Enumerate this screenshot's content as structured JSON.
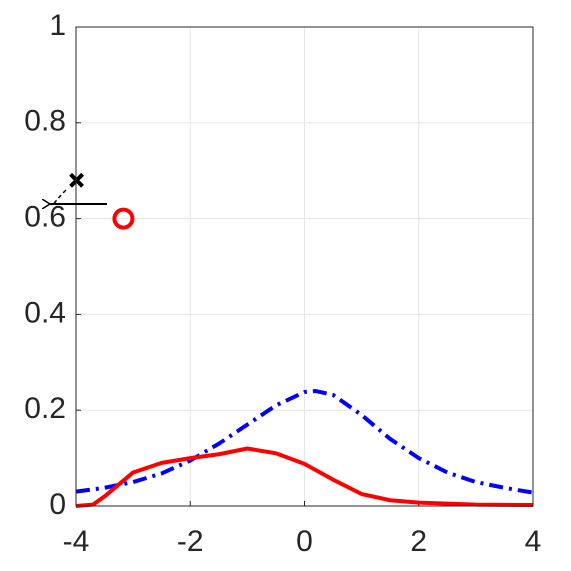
{
  "chart_data": {
    "type": "line",
    "xlim": [
      -4,
      4
    ],
    "ylim": [
      0,
      1
    ],
    "xticks": [
      -4,
      -2,
      0,
      2,
      4
    ],
    "yticks": [
      0,
      0.2,
      0.4,
      0.6,
      0.8,
      1
    ],
    "grid": true,
    "series": [
      {
        "color": "#0000ff",
        "style": "dashdot",
        "x": [
          -4,
          -3.5,
          -3,
          -2.5,
          -2,
          -1.5,
          -1,
          -0.5,
          0,
          0.2,
          0.5,
          1,
          1.5,
          2,
          2.5,
          3,
          3.5,
          4
        ],
        "values": [
          0.03,
          0.038,
          0.05,
          0.068,
          0.095,
          0.13,
          0.17,
          0.21,
          0.238,
          0.24,
          0.232,
          0.19,
          0.14,
          0.1,
          0.07,
          0.05,
          0.038,
          0.028
        ]
      },
      {
        "color": "#ff0000",
        "style": "solid",
        "x": [
          -4,
          -3.7,
          -3.5,
          -3.2,
          -3,
          -2.5,
          -2,
          -1.5,
          -1,
          -0.5,
          0,
          0.5,
          1,
          1.5,
          2,
          3,
          4
        ],
        "values": [
          0,
          0.003,
          0.02,
          0.05,
          0.07,
          0.09,
          0.1,
          0.108,
          0.12,
          0.11,
          0.088,
          0.055,
          0.025,
          0.012,
          0.007,
          0.003,
          0.002
        ]
      }
    ],
    "points": [
      {
        "x": -3.99,
        "y": 0.68,
        "marker": "x",
        "color": "#000000"
      },
      {
        "x": -3.17,
        "y": 0.6,
        "marker": "o",
        "color": "#ff0000"
      }
    ]
  }
}
